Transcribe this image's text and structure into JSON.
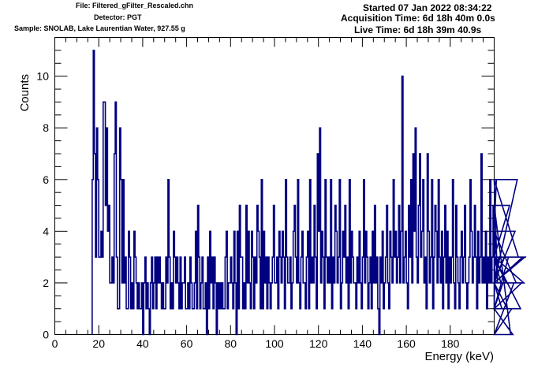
{
  "header": {
    "file": "File: Filtered_gFilter_Rescaled.chn",
    "detector": "Detector: PGT",
    "sample": "Sample: SNOLAB, Lake Laurentian Water, 927.55 g",
    "started": "Started 07 Jan 2022 08:34:22",
    "acquisition": "Acquisition Time: 6d 18h 40m 0.0s",
    "live": "Live Time: 6d 18h 39m 40.9s"
  },
  "chart_data": {
    "type": "histogram",
    "xlabel": "Energy (keV)",
    "ylabel": "Counts",
    "xlim": [
      0,
      200
    ],
    "ylim": [
      0,
      11.5
    ],
    "x_ticks": [
      0,
      20,
      40,
      60,
      80,
      100,
      120,
      140,
      160,
      180
    ],
    "y_ticks": [
      0,
      2,
      4,
      6,
      8,
      10
    ],
    "x_minor_step": 5,
    "y_minor_step": 0.5,
    "bin_width": 0.5,
    "line_color": "#000080",
    "bins_start": 17,
    "counts": [
      6,
      11,
      7,
      3,
      8,
      6,
      3,
      3,
      4,
      3,
      9,
      9,
      5,
      8,
      4,
      5,
      2,
      2,
      3,
      2,
      7,
      9,
      3,
      1,
      1,
      8,
      6,
      2,
      6,
      2,
      3,
      1,
      1,
      4,
      3,
      1,
      2,
      1,
      4,
      3,
      2,
      1,
      2,
      1,
      1,
      2,
      0,
      2,
      3,
      1,
      2,
      1,
      0,
      2,
      3,
      1,
      2,
      3,
      1,
      3,
      2,
      3,
      2,
      1,
      2,
      1,
      1,
      3,
      2,
      6,
      3,
      1,
      2,
      1,
      4,
      3,
      2,
      3,
      2,
      1,
      3,
      1,
      2,
      2,
      3,
      1,
      1,
      2,
      1,
      3,
      2,
      1,
      1,
      2,
      4,
      1,
      5,
      3,
      1,
      2,
      3,
      1,
      1,
      2,
      0,
      3,
      1,
      4,
      2,
      3,
      1,
      3,
      2,
      0,
      2,
      1,
      2,
      1,
      2,
      1,
      1,
      3,
      4,
      1,
      2,
      2,
      3,
      2,
      1,
      4,
      2,
      0,
      4,
      1,
      5,
      3,
      3,
      1,
      2,
      1,
      5,
      2,
      4,
      2,
      1,
      4,
      3,
      1,
      3,
      2,
      5,
      4,
      3,
      1,
      6,
      1,
      4,
      2,
      3,
      1,
      3,
      2,
      1,
      2,
      3,
      5,
      2,
      2,
      3,
      1,
      4,
      3,
      2,
      4,
      3,
      1,
      6,
      3,
      2,
      2,
      3,
      1,
      2,
      4,
      5,
      3,
      2,
      6,
      2,
      1,
      3,
      4,
      2,
      2,
      1,
      3,
      4,
      1,
      6,
      2,
      3,
      2,
      5,
      3,
      1,
      7,
      4,
      8,
      2,
      4,
      3,
      1,
      6,
      3,
      2,
      3,
      2,
      6,
      1,
      3,
      2,
      5,
      4,
      2,
      3,
      6,
      1,
      2,
      4,
      3,
      5,
      2,
      3,
      1,
      6,
      2,
      4,
      3,
      2,
      2,
      1,
      3,
      2,
      4,
      2,
      1,
      3,
      6,
      2,
      4,
      3,
      1,
      2,
      3,
      1,
      4,
      2,
      5,
      2,
      3,
      1,
      0,
      3,
      2,
      4,
      1,
      2,
      3,
      5,
      2,
      1,
      4,
      3,
      2,
      6,
      3,
      4,
      2,
      3,
      5,
      2,
      4,
      10,
      2,
      3,
      4,
      2,
      1,
      5,
      3,
      6,
      2,
      7,
      4,
      8,
      3,
      2,
      5,
      7,
      3,
      4,
      6,
      2,
      3,
      1,
      7,
      4,
      2,
      3,
      6,
      1,
      3,
      5,
      4,
      2,
      6,
      3,
      2,
      4,
      1,
      3,
      5,
      2,
      4,
      1,
      3,
      2,
      3,
      6,
      2,
      1,
      5,
      3,
      2,
      1,
      3,
      4,
      2,
      3,
      5,
      2,
      1,
      2,
      3,
      6,
      4,
      2,
      3,
      5,
      3,
      1,
      4,
      2,
      3,
      7,
      2,
      3,
      2,
      4,
      1,
      3,
      2,
      6,
      2,
      3,
      5,
      1,
      4,
      6,
      2,
      3,
      3,
      2,
      1,
      2,
      3,
      3,
      2,
      1,
      3,
      5,
      0,
      1,
      0,
      2,
      4,
      2,
      6,
      3,
      3,
      1,
      2,
      3,
      2,
      3,
      3
    ]
  }
}
